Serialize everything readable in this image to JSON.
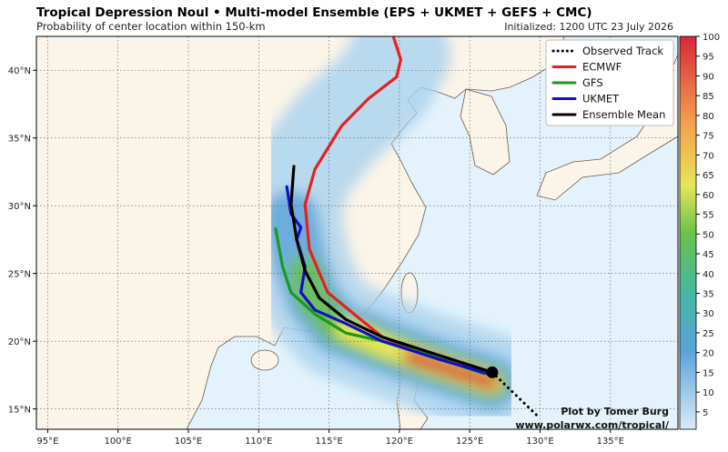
{
  "header": {
    "title": "Tropical Depression Noul • Multi-model Ensemble (EPS + UKMET + GEFS + CMC)",
    "subtitle": "Probability of center location within 150-km",
    "initialized": "Initialized: 1200 UTC 23 July 2026"
  },
  "map": {
    "lonlim": [
      94.2,
      139.8
    ],
    "latlim": [
      13.5,
      42.5
    ],
    "lonticks": [
      {
        "value": 95,
        "label": "95°E"
      },
      {
        "value": 100,
        "label": "100°E"
      },
      {
        "value": 105,
        "label": "105°E"
      },
      {
        "value": 110,
        "label": "110°E"
      },
      {
        "value": 115,
        "label": "115°E"
      },
      {
        "value": 120,
        "label": "120°E"
      },
      {
        "value": 125,
        "label": "125°E"
      },
      {
        "value": 130,
        "label": "130°E"
      },
      {
        "value": 135,
        "label": "135°E"
      }
    ],
    "latticks": [
      {
        "value": 15,
        "label": "15°N"
      },
      {
        "value": 20,
        "label": "20°N"
      },
      {
        "value": 25,
        "label": "25°N"
      },
      {
        "value": 30,
        "label": "30°N"
      },
      {
        "value": 35,
        "label": "35°N"
      },
      {
        "value": 40,
        "label": "40°N"
      }
    ],
    "tracks": [
      {
        "name": "Observed Track",
        "color": "#000000",
        "style": "dotted",
        "lon": [
          126.6,
          130.0
        ],
        "lat": [
          17.7,
          14.3
        ]
      },
      {
        "name": "ECMWF",
        "color": "#e8201c",
        "style": "solid",
        "lon": [
          126.3,
          122.1,
          118.8,
          116.9,
          114.9,
          113.6,
          113.3,
          114.0,
          115.9,
          117.8,
          119.8,
          120.1,
          119.6
        ],
        "lat": [
          17.6,
          19.0,
          20.3,
          21.9,
          23.6,
          26.8,
          30.1,
          32.7,
          35.9,
          37.9,
          39.5,
          40.8,
          42.4
        ]
      },
      {
        "name": "GFS",
        "color": "#1a9a1a",
        "style": "solid",
        "lon": [
          126.0,
          122.1,
          118.8,
          116.2,
          114.0,
          112.3,
          111.7,
          111.2
        ],
        "lat": [
          17.6,
          19.0,
          20.0,
          20.6,
          22.0,
          23.6,
          25.5,
          28.3
        ]
      },
      {
        "name": "UKMET",
        "color": "#1010c8",
        "style": "solid",
        "lon": [
          126.3,
          122.7,
          118.8,
          116.2,
          114.0,
          113.0,
          113.3,
          112.7,
          113.0,
          112.3,
          112.0
        ],
        "lat": [
          17.6,
          18.7,
          20.0,
          21.3,
          22.3,
          23.6,
          25.5,
          27.5,
          28.4,
          29.4,
          31.4
        ]
      },
      {
        "name": "Ensemble Mean",
        "color": "#000000",
        "style": "solid",
        "lon": [
          126.6,
          122.1,
          118.8,
          116.2,
          114.3,
          113.3,
          112.7,
          112.3,
          112.5
        ],
        "lat": [
          17.7,
          19.2,
          20.3,
          21.6,
          23.2,
          25.2,
          27.5,
          30.1,
          32.9
        ]
      }
    ]
  },
  "colorbar": {
    "lim": [
      0.6,
      100
    ],
    "ticks": [
      5,
      10,
      15,
      20,
      25,
      30,
      35,
      40,
      45,
      50,
      55,
      60,
      65,
      70,
      75,
      80,
      85,
      90,
      95,
      100
    ]
  },
  "credits": {
    "author": "Plot by Tomer Burg",
    "url": "www.polarwx.com/tropical/"
  }
}
